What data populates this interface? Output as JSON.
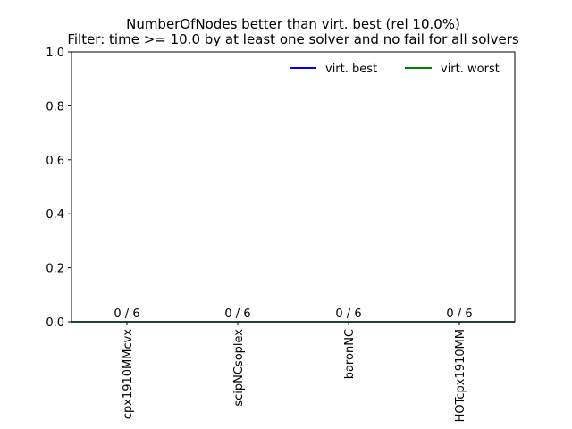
{
  "chart_data": {
    "type": "bar",
    "title_lines": [
      "NumberOfNodes better than virt. best (rel 10.0%)",
      "Filter: time >= 10.0 by at least one solver and no fail for all solvers"
    ],
    "categories": [
      "cpx1910MMcvx",
      "scipNCsoplex",
      "baronNC",
      "HOTcpx1910MM"
    ],
    "values": [
      0,
      0,
      0,
      0
    ],
    "bar_labels": [
      "0 / 6",
      "0 / 6",
      "0 / 6",
      "0 / 6"
    ],
    "ylim": [
      0,
      1.0
    ],
    "yticks": [
      "0.0",
      "0.2",
      "0.4",
      "0.6",
      "0.8",
      "1.0"
    ],
    "grid": false,
    "legend_placement": "top-right",
    "series": [
      {
        "name": "virt. best",
        "color": "#0000ff",
        "y": 0
      },
      {
        "name": "virt. worst",
        "color": "#008000",
        "y": 0
      }
    ]
  }
}
